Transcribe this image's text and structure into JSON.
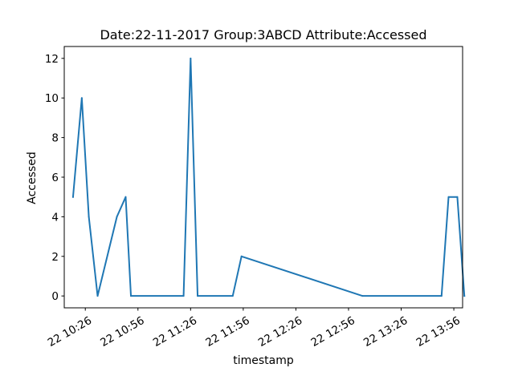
{
  "chart_data": {
    "type": "line",
    "title": "Date:22-11-2017  Group:3ABCD Attribute:Accessed",
    "xlabel": "timestamp",
    "ylabel": "Accessed",
    "x_unit": "time of day (HH:MM) on 2017-11-22",
    "xlim": [
      "10:14",
      "14:01"
    ],
    "ylim": [
      -0.6,
      12.6
    ],
    "x_ticks": [
      "10:26",
      "10:56",
      "11:26",
      "11:56",
      "12:26",
      "12:56",
      "13:26",
      "13:56"
    ],
    "x_tick_labels": [
      "22 10:26",
      "22 10:56",
      "22 11:26",
      "22 11:56",
      "22 12:26",
      "22 12:56",
      "22 13:26",
      "22 13:56"
    ],
    "y_ticks": [
      0,
      2,
      4,
      6,
      8,
      10,
      12
    ],
    "y_tick_labels": [
      "0",
      "2",
      "4",
      "6",
      "8",
      "10",
      "12"
    ],
    "grid": false,
    "series": [
      {
        "color": "#1f77b4",
        "points": [
          {
            "x": "10:19",
            "y": 5
          },
          {
            "x": "10:24",
            "y": 10
          },
          {
            "x": "10:28",
            "y": 4
          },
          {
            "x": "10:33",
            "y": 0
          },
          {
            "x": "10:44",
            "y": 4
          },
          {
            "x": "10:49",
            "y": 5
          },
          {
            "x": "10:52",
            "y": 0
          },
          {
            "x": "11:22",
            "y": 0
          },
          {
            "x": "11:26",
            "y": 12
          },
          {
            "x": "11:30",
            "y": 0
          },
          {
            "x": "11:50",
            "y": 0
          },
          {
            "x": "11:55",
            "y": 2
          },
          {
            "x": "13:04",
            "y": 0
          },
          {
            "x": "13:49",
            "y": 0
          },
          {
            "x": "13:53",
            "y": 5
          },
          {
            "x": "13:58",
            "y": 5
          },
          {
            "x": "14:02",
            "y": 0
          }
        ]
      }
    ]
  }
}
